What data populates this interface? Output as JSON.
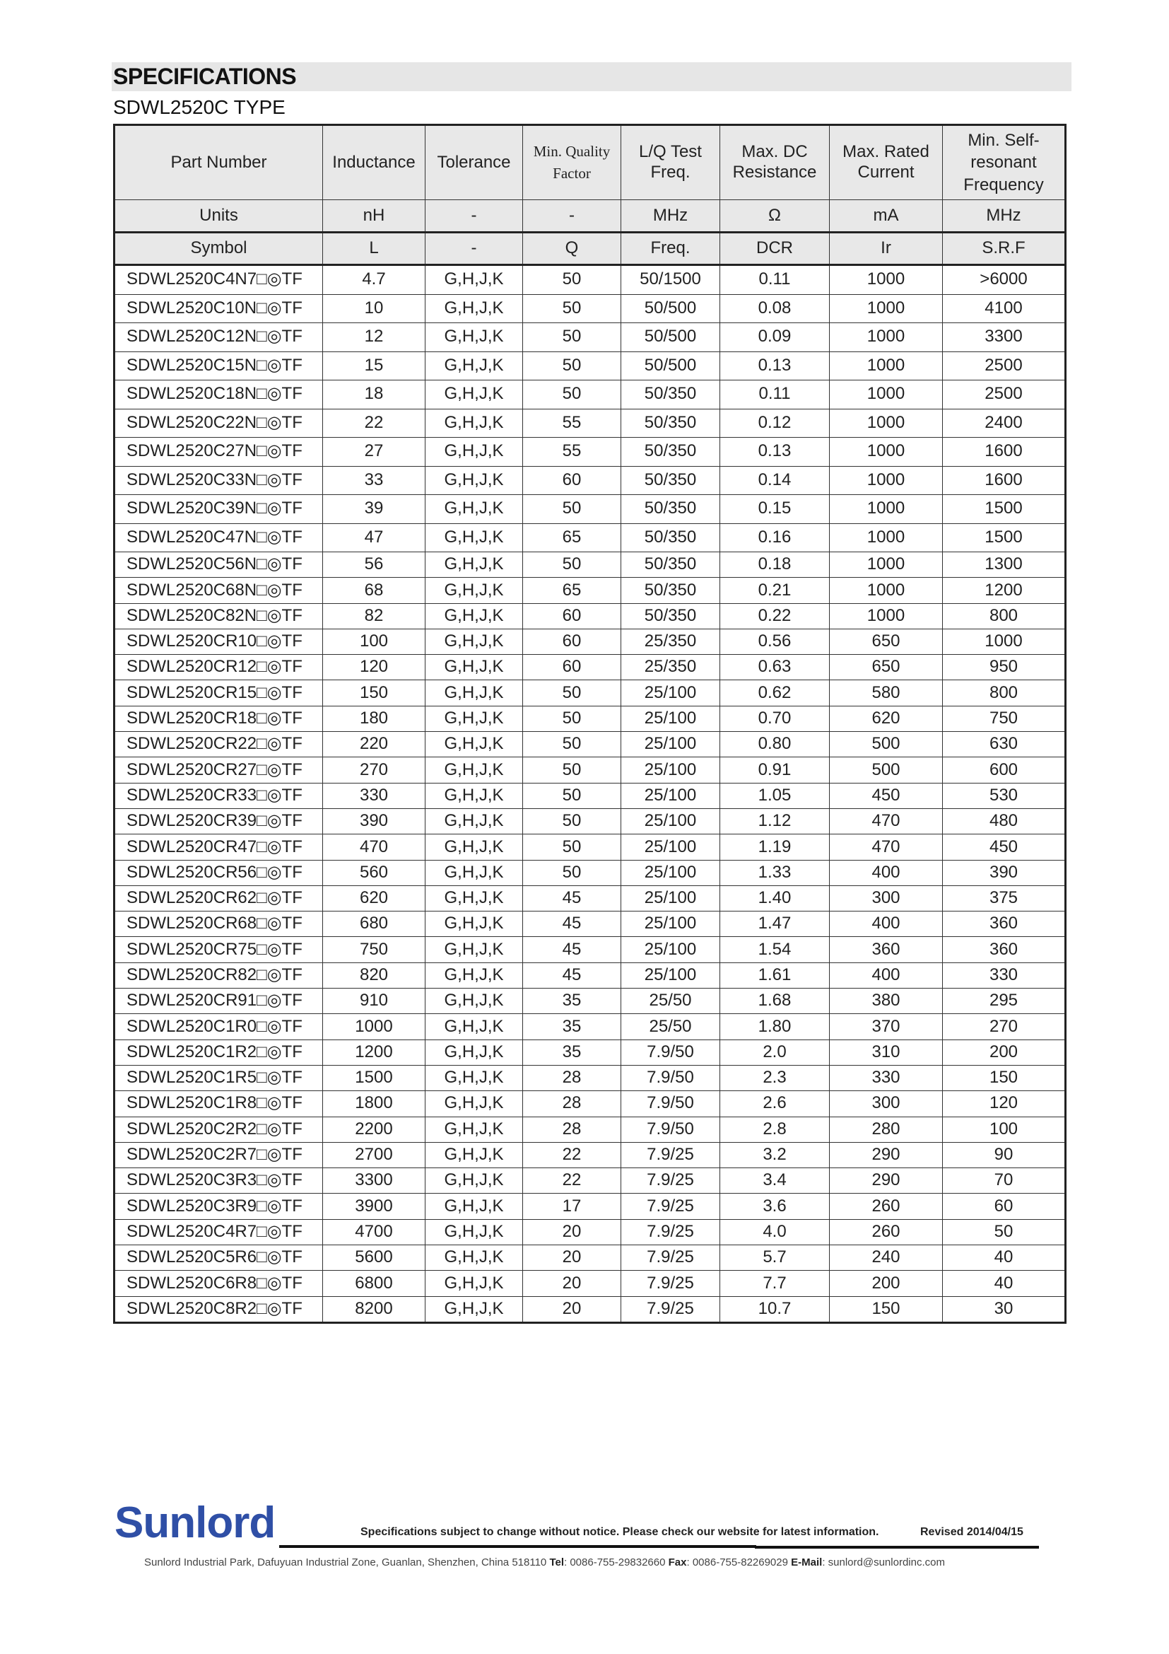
{
  "header": {
    "title": "SPECIFICATIONS",
    "subtitle": "SDWL2520C TYPE"
  },
  "table": {
    "columns": [
      "Part Number",
      "Inductance",
      "Tolerance",
      "Min. Quality Factor",
      "L/Q Test Freq.",
      "Max. DC Resistance",
      "Max. Rated Current",
      "Min. Self-resonant Frequency"
    ],
    "units": [
      "Units",
      "nH",
      "-",
      "-",
      "MHz",
      "Ω",
      "mA",
      "MHz"
    ],
    "symbols": [
      "Symbol",
      "L",
      "-",
      "Q",
      "Freq.",
      "DCR",
      "Ir",
      "S.R.F"
    ],
    "rows": [
      [
        "SDWL2520C4N7□◎TF",
        "4.7",
        "G,H,J,K",
        "50",
        "50/1500",
        "0.11",
        "1000",
        ">6000"
      ],
      [
        "SDWL2520C10N□◎TF",
        "10",
        "G,H,J,K",
        "50",
        "50/500",
        "0.08",
        "1000",
        "4100"
      ],
      [
        "SDWL2520C12N□◎TF",
        "12",
        "G,H,J,K",
        "50",
        "50/500",
        "0.09",
        "1000",
        "3300"
      ],
      [
        "SDWL2520C15N□◎TF",
        "15",
        "G,H,J,K",
        "50",
        "50/500",
        "0.13",
        "1000",
        "2500"
      ],
      [
        "SDWL2520C18N□◎TF",
        "18",
        "G,H,J,K",
        "50",
        "50/350",
        "0.11",
        "1000",
        "2500"
      ],
      [
        "SDWL2520C22N□◎TF",
        "22",
        "G,H,J,K",
        "55",
        "50/350",
        "0.12",
        "1000",
        "2400"
      ],
      [
        "SDWL2520C27N□◎TF",
        "27",
        "G,H,J,K",
        "55",
        "50/350",
        "0.13",
        "1000",
        "1600"
      ],
      [
        "SDWL2520C33N□◎TF",
        "33",
        "G,H,J,K",
        "60",
        "50/350",
        "0.14",
        "1000",
        "1600"
      ],
      [
        "SDWL2520C39N□◎TF",
        "39",
        "G,H,J,K",
        "50",
        "50/350",
        "0.15",
        "1000",
        "1500"
      ],
      [
        "SDWL2520C47N□◎TF",
        "47",
        "G,H,J,K",
        "65",
        "50/350",
        "0.16",
        "1000",
        "1500"
      ],
      [
        "SDWL2520C56N□◎TF",
        "56",
        "G,H,J,K",
        "50",
        "50/350",
        "0.18",
        "1000",
        "1300"
      ],
      [
        "SDWL2520C68N□◎TF",
        "68",
        "G,H,J,K",
        "65",
        "50/350",
        "0.21",
        "1000",
        "1200"
      ],
      [
        "SDWL2520C82N□◎TF",
        "82",
        "G,H,J,K",
        "60",
        "50/350",
        "0.22",
        "1000",
        "800"
      ],
      [
        "SDWL2520CR10□◎TF",
        "100",
        "G,H,J,K",
        "60",
        "25/350",
        "0.56",
        "650",
        "1000"
      ],
      [
        "SDWL2520CR12□◎TF",
        "120",
        "G,H,J,K",
        "60",
        "25/350",
        "0.63",
        "650",
        "950"
      ],
      [
        "SDWL2520CR15□◎TF",
        "150",
        "G,H,J,K",
        "50",
        "25/100",
        "0.62",
        "580",
        "800"
      ],
      [
        "SDWL2520CR18□◎TF",
        "180",
        "G,H,J,K",
        "50",
        "25/100",
        "0.70",
        "620",
        "750"
      ],
      [
        "SDWL2520CR22□◎TF",
        "220",
        "G,H,J,K",
        "50",
        "25/100",
        "0.80",
        "500",
        "630"
      ],
      [
        "SDWL2520CR27□◎TF",
        "270",
        "G,H,J,K",
        "50",
        "25/100",
        "0.91",
        "500",
        "600"
      ],
      [
        "SDWL2520CR33□◎TF",
        "330",
        "G,H,J,K",
        "50",
        "25/100",
        "1.05",
        "450",
        "530"
      ],
      [
        "SDWL2520CR39□◎TF",
        "390",
        "G,H,J,K",
        "50",
        "25/100",
        "1.12",
        "470",
        "480"
      ],
      [
        "SDWL2520CR47□◎TF",
        "470",
        "G,H,J,K",
        "50",
        "25/100",
        "1.19",
        "470",
        "450"
      ],
      [
        "SDWL2520CR56□◎TF",
        "560",
        "G,H,J,K",
        "50",
        "25/100",
        "1.33",
        "400",
        "390"
      ],
      [
        "SDWL2520CR62□◎TF",
        "620",
        "G,H,J,K",
        "45",
        "25/100",
        "1.40",
        "300",
        "375"
      ],
      [
        "SDWL2520CR68□◎TF",
        "680",
        "G,H,J,K",
        "45",
        "25/100",
        "1.47",
        "400",
        "360"
      ],
      [
        "SDWL2520CR75□◎TF",
        "750",
        "G,H,J,K",
        "45",
        "25/100",
        "1.54",
        "360",
        "360"
      ],
      [
        "SDWL2520CR82□◎TF",
        "820",
        "G,H,J,K",
        "45",
        "25/100",
        "1.61",
        "400",
        "330"
      ],
      [
        "SDWL2520CR91□◎TF",
        "910",
        "G,H,J,K",
        "35",
        "25/50",
        "1.68",
        "380",
        "295"
      ],
      [
        "SDWL2520C1R0□◎TF",
        "1000",
        "G,H,J,K",
        "35",
        "25/50",
        "1.80",
        "370",
        "270"
      ],
      [
        "SDWL2520C1R2□◎TF",
        "1200",
        "G,H,J,K",
        "35",
        "7.9/50",
        "2.0",
        "310",
        "200"
      ],
      [
        "SDWL2520C1R5□◎TF",
        "1500",
        "G,H,J,K",
        "28",
        "7.9/50",
        "2.3",
        "330",
        "150"
      ],
      [
        "SDWL2520C1R8□◎TF",
        "1800",
        "G,H,J,K",
        "28",
        "7.9/50",
        "2.6",
        "300",
        "120"
      ],
      [
        "SDWL2520C2R2□◎TF",
        "2200",
        "G,H,J,K",
        "28",
        "7.9/50",
        "2.8",
        "280",
        "100"
      ],
      [
        "SDWL2520C2R7□◎TF",
        "2700",
        "G,H,J,K",
        "22",
        "7.9/25",
        "3.2",
        "290",
        "90"
      ],
      [
        "SDWL2520C3R3□◎TF",
        "3300",
        "G,H,J,K",
        "22",
        "7.9/25",
        "3.4",
        "290",
        "70"
      ],
      [
        "SDWL2520C3R9□◎TF",
        "3900",
        "G,H,J,K",
        "17",
        "7.9/25",
        "3.6",
        "260",
        "60"
      ],
      [
        "SDWL2520C4R7□◎TF",
        "4700",
        "G,H,J,K",
        "20",
        "7.9/25",
        "4.0",
        "260",
        "50"
      ],
      [
        "SDWL2520C5R6□◎TF",
        "5600",
        "G,H,J,K",
        "20",
        "7.9/25",
        "5.7",
        "240",
        "40"
      ],
      [
        "SDWL2520C6R8□◎TF",
        "6800",
        "G,H,J,K",
        "20",
        "7.9/25",
        "7.7",
        "200",
        "40"
      ],
      [
        "SDWL2520C8R2□◎TF",
        "8200",
        "G,H,J,K",
        "20",
        "7.9/25",
        "10.7",
        "150",
        "30"
      ]
    ]
  },
  "footer": {
    "logo": "Sunlord",
    "logo_color": "#2f4fa6",
    "notice": "Specifications subject to change without notice. Please check our website for latest information.",
    "revised": "Revised 2014/04/15",
    "address": "Sunlord Industrial Park, Dafuyuan Industrial Zone, Guanlan, Shenzhen, China 518110",
    "tel_label": "Tel",
    "tel": ": 0086-755-29832660",
    "fax_label": "Fax",
    "fax": ": 0086-755-82269029",
    "email_label": "E-Mail",
    "email": ": sunlord@sunlordinc.com"
  }
}
